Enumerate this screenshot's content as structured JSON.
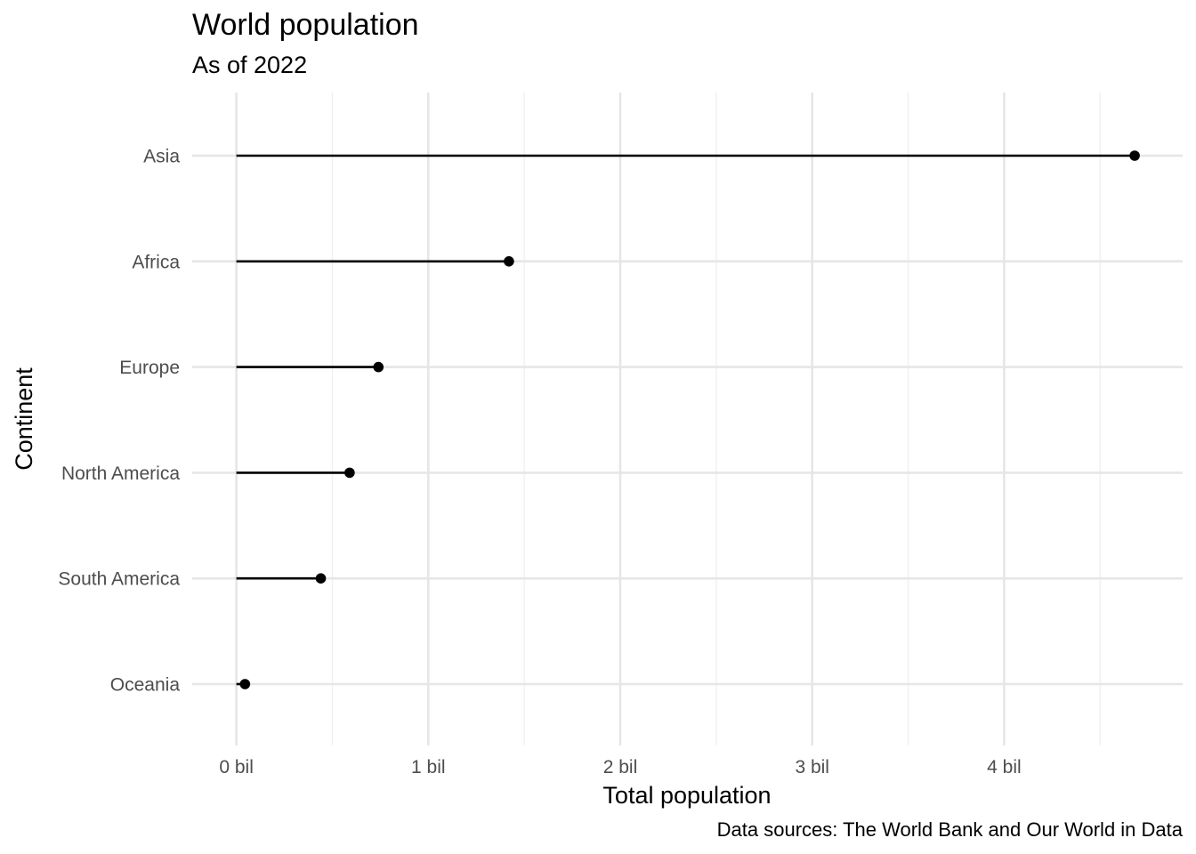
{
  "chart_data": {
    "type": "lollipop",
    "title": "World population",
    "subtitle": "As of 2022",
    "caption": "Data sources: The World Bank and Our World in Data",
    "xlabel": "Total population",
    "ylabel": "Continent",
    "categories": [
      "Asia",
      "Africa",
      "Europe",
      "North America",
      "South America",
      "Oceania"
    ],
    "values": [
      4.68,
      1.42,
      0.74,
      0.59,
      0.44,
      0.045
    ],
    "unit": "billions",
    "xlim": [
      -0.23,
      4.93
    ],
    "x_ticks": [
      0,
      1,
      2,
      3,
      4
    ],
    "x_tick_labels": [
      "0 bil",
      "1 bil",
      "2 bil",
      "3 bil",
      "4 bil"
    ],
    "grid": true,
    "legend": "none",
    "colors": {
      "mark": "#000000",
      "grid_major": "#e6e6e6",
      "grid_minor": "#f0f0f0",
      "tick_text": "#4d4d4d"
    }
  }
}
